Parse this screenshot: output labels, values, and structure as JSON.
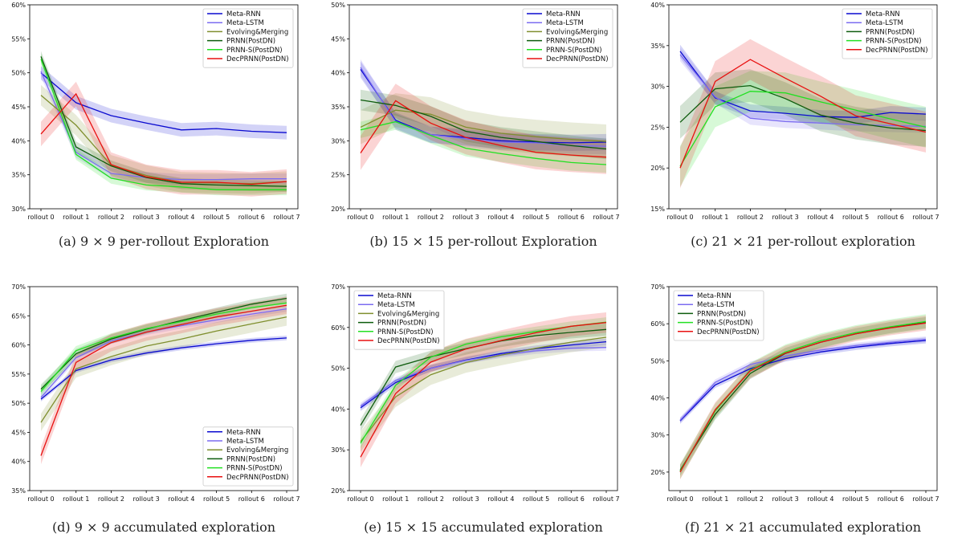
{
  "colors": {
    "Meta-RNN": "#0a0ad0",
    "Meta-LSTM": "#7b6cf0",
    "Evolving&Merging": "#7f8f2e",
    "PRNN(PostDN)": "#0d5c0d",
    "PRNN-S(PostDN)": "#22e022",
    "DecPRNN(PostDN)": "#e81010"
  },
  "chart_data": [
    {
      "type": "line",
      "caption": "(a) 9 × 9 per-rollout Exploration",
      "categories": [
        "rollout 0",
        "rollout 1",
        "rollout 2",
        "rollout 3",
        "rollout 4",
        "rollout 5",
        "rollout 6",
        "rollout 7"
      ],
      "ylim": [
        30,
        60
      ],
      "yticks": [
        "30%",
        "35%",
        "40%",
        "45%",
        "50%",
        "55%",
        "60%"
      ],
      "legend": "top-right",
      "series": [
        {
          "name": "Meta-RNN",
          "values": [
            50.0,
            45.6,
            43.7,
            42.6,
            41.6,
            41.8,
            41.4,
            41.2
          ],
          "band": 1.0
        },
        {
          "name": "Meta-LSTM",
          "values": [
            50.2,
            38.3,
            35.2,
            34.6,
            34.3,
            34.3,
            34.4,
            34.4
          ],
          "band": 0.8
        },
        {
          "name": "Evolving&Merging",
          "values": [
            46.7,
            42.3,
            36.4,
            34.9,
            33.9,
            33.8,
            33.7,
            34.0
          ],
          "band": 1.5
        },
        {
          "name": "PRNN(PostDN)",
          "values": [
            52.4,
            39.1,
            36.3,
            34.6,
            33.7,
            33.5,
            33.4,
            33.3
          ],
          "band": 0.8
        },
        {
          "name": "PRNN-S(PostDN)",
          "values": [
            52.0,
            38.0,
            34.5,
            33.5,
            33.2,
            32.8,
            32.8,
            32.8
          ],
          "band": 0.8
        },
        {
          "name": "DecPRNN(PostDN)",
          "values": [
            41.0,
            46.9,
            36.5,
            34.7,
            33.9,
            33.9,
            33.6,
            34.0
          ],
          "band": 1.8
        }
      ]
    },
    {
      "type": "line",
      "caption": "(b) 15 × 15 per-rollout Exploration",
      "categories": [
        "rollout 0",
        "rollout 1",
        "rollout 2",
        "rollout 3",
        "rollout 4",
        "rollout 5",
        "rollout 6",
        "rollout 7"
      ],
      "ylim": [
        20,
        50
      ],
      "yticks": [
        "20%",
        "25%",
        "30%",
        "35%",
        "40%",
        "45%",
        "50%"
      ],
      "legend": "top-right",
      "series": [
        {
          "name": "Meta-RNN",
          "values": [
            40.5,
            33.0,
            30.9,
            30.5,
            30.0,
            29.8,
            29.7,
            29.8
          ],
          "band": 1.2
        },
        {
          "name": "Meta-LSTM",
          "values": [
            40.8,
            32.8,
            30.9,
            30.3,
            29.8,
            29.7,
            29.3,
            29.2
          ],
          "band": 1.2
        },
        {
          "name": "Evolving&Merging",
          "values": [
            32.0,
            34.5,
            33.9,
            32.0,
            31.1,
            30.6,
            30.2,
            29.9
          ],
          "band": 2.5
        },
        {
          "name": "PRNN(PostDN)",
          "values": [
            36.0,
            35.2,
            33.6,
            31.4,
            30.5,
            29.9,
            29.3,
            28.8
          ],
          "band": 1.5
        },
        {
          "name": "PRNN-S(PostDN)",
          "values": [
            31.6,
            32.8,
            30.8,
            28.9,
            28.1,
            27.4,
            26.8,
            26.5
          ],
          "band": 1.2
        },
        {
          "name": "DecPRNN(PostDN)",
          "values": [
            28.2,
            35.9,
            32.6,
            30.5,
            29.3,
            28.3,
            27.9,
            27.6
          ],
          "band": 2.5
        }
      ]
    },
    {
      "type": "line",
      "caption": "(c) 21 × 21 per-rollout exploration",
      "categories": [
        "rollout 0",
        "rollout 1",
        "rollout 2",
        "rollout 3",
        "rollout 4",
        "rollout 5",
        "rollout 6",
        "rollout 7"
      ],
      "ylim": [
        15,
        40
      ],
      "yticks": [
        "15%",
        "20%",
        "25%",
        "30%",
        "35%",
        "40%"
      ],
      "legend": "top-right",
      "series": [
        {
          "name": "Meta-RNN",
          "values": [
            34.3,
            28.6,
            27.0,
            26.7,
            26.3,
            26.2,
            26.8,
            26.6
          ],
          "band": 0.8
        },
        {
          "name": "Meta-LSTM",
          "values": [
            33.9,
            28.7,
            26.1,
            25.7,
            25.5,
            25.3,
            25.2,
            25.1
          ],
          "band": 0.8
        },
        {
          "name": "PRNN(PostDN)",
          "values": [
            25.6,
            29.7,
            30.1,
            28.5,
            26.5,
            25.5,
            24.9,
            24.6
          ],
          "band": 2.0
        },
        {
          "name": "PRNN-S(PostDN)",
          "values": [
            20.2,
            27.5,
            29.4,
            29.2,
            28.1,
            27.1,
            26.0,
            25.0
          ],
          "band": 2.5
        },
        {
          "name": "DecPRNN(PostDN)",
          "values": [
            20.0,
            30.6,
            33.3,
            31.0,
            28.8,
            26.4,
            25.4,
            24.4
          ],
          "band": 2.5
        }
      ]
    },
    {
      "type": "line",
      "caption": "(d) 9 × 9 accumulated exploration",
      "categories": [
        "rollout 0",
        "rollout 1",
        "rollout 2",
        "rollout 3",
        "rollout 4",
        "rollout 5",
        "rollout 6",
        "rollout 7"
      ],
      "ylim": [
        35,
        70
      ],
      "yticks": [
        "35%",
        "40%",
        "45%",
        "50%",
        "55%",
        "60%",
        "65%",
        "70%"
      ],
      "legend": "bottom-right",
      "series": [
        {
          "name": "Meta-RNN",
          "values": [
            50.7,
            55.6,
            57.4,
            58.6,
            59.5,
            60.2,
            60.8,
            61.2
          ],
          "band": 0.4
        },
        {
          "name": "Meta-LSTM",
          "values": [
            51.0,
            57.8,
            60.7,
            62.2,
            63.3,
            64.3,
            65.3,
            66.2
          ],
          "band": 0.5
        },
        {
          "name": "Evolving&Merging",
          "values": [
            46.7,
            55.9,
            58.0,
            59.8,
            61.0,
            62.4,
            63.6,
            64.8
          ],
          "band": 1.5
        },
        {
          "name": "PRNN(PostDN)",
          "values": [
            52.4,
            58.5,
            61.0,
            62.7,
            64.2,
            65.6,
            67.0,
            68.0
          ],
          "band": 0.8
        },
        {
          "name": "PRNN-S(PostDN)",
          "values": [
            52.0,
            59.0,
            61.2,
            62.8,
            64.0,
            65.3,
            66.4,
            67.2
          ],
          "band": 0.8
        },
        {
          "name": "DecPRNN(PostDN)",
          "values": [
            41.0,
            57.0,
            60.4,
            62.2,
            63.5,
            64.8,
            65.8,
            66.8
          ],
          "band": 1.5
        }
      ]
    },
    {
      "type": "line",
      "caption": "(e) 15 × 15 accumulated exploration",
      "categories": [
        "rollout 0",
        "rollout 1",
        "rollout 2",
        "rollout 3",
        "rollout 4",
        "rollout 5",
        "rollout 6",
        "rollout 7"
      ],
      "ylim": [
        20,
        70
      ],
      "yticks": [
        "20%",
        "30%",
        "40%",
        "50%",
        "60%",
        "70%"
      ],
      "legend": "top-left",
      "series": [
        {
          "name": "Meta-RNN",
          "values": [
            40.3,
            46.5,
            50.0,
            52.0,
            53.6,
            54.8,
            55.7,
            56.5
          ],
          "band": 0.8
        },
        {
          "name": "Meta-LSTM",
          "values": [
            40.7,
            47.0,
            50.0,
            51.9,
            53.3,
            54.3,
            54.9,
            55.1
          ],
          "band": 0.8
        },
        {
          "name": "Evolving&Merging",
          "values": [
            32.0,
            43.0,
            48.4,
            51.4,
            53.2,
            54.9,
            56.4,
            57.6
          ],
          "band": 2.5
        },
        {
          "name": "PRNN(PostDN)",
          "values": [
            36.0,
            50.3,
            52.8,
            54.8,
            56.7,
            58.0,
            58.8,
            59.5
          ],
          "band": 1.5
        },
        {
          "name": "PRNN-S(PostDN)",
          "values": [
            31.6,
            45.8,
            52.7,
            55.9,
            57.7,
            59.0,
            60.3,
            61.3
          ],
          "band": 1.2
        },
        {
          "name": "DecPRNN(PostDN)",
          "values": [
            28.2,
            43.8,
            51.5,
            54.7,
            56.8,
            58.7,
            60.3,
            61.2
          ],
          "band": 2.5
        }
      ]
    },
    {
      "type": "line",
      "caption": "(f) 21 × 21 accumulated exploration",
      "categories": [
        "rollout 0",
        "rollout 1",
        "rollout 2",
        "rollout 3",
        "rollout 4",
        "rollout 5",
        "rollout 6",
        "rollout 7"
      ],
      "ylim": [
        15,
        70
      ],
      "yticks": [
        "20%",
        "30%",
        "40%",
        "50%",
        "60%",
        "70%"
      ],
      "legend": "top-left",
      "series": [
        {
          "name": "Meta-RNN",
          "values": [
            33.8,
            43.5,
            47.9,
            50.6,
            52.4,
            53.7,
            54.7,
            55.5
          ],
          "band": 0.8
        },
        {
          "name": "Meta-LSTM",
          "values": [
            34.0,
            44.2,
            49.0,
            51.3,
            52.9,
            54.1,
            55.0,
            55.8
          ],
          "band": 0.8
        },
        {
          "name": "PRNN(PostDN)",
          "values": [
            20.5,
            35.6,
            46.6,
            52.0,
            55.0,
            57.3,
            59.0,
            60.3
          ],
          "band": 1.5
        },
        {
          "name": "PRNN-S(PostDN)",
          "values": [
            20.2,
            36.5,
            47.5,
            52.4,
            55.4,
            57.6,
            59.2,
            60.6
          ],
          "band": 2.0
        },
        {
          "name": "DecPRNN(PostDN)",
          "values": [
            20.0,
            36.8,
            47.3,
            52.1,
            55.0,
            57.3,
            58.9,
            60.2
          ],
          "band": 2.0
        }
      ]
    }
  ]
}
